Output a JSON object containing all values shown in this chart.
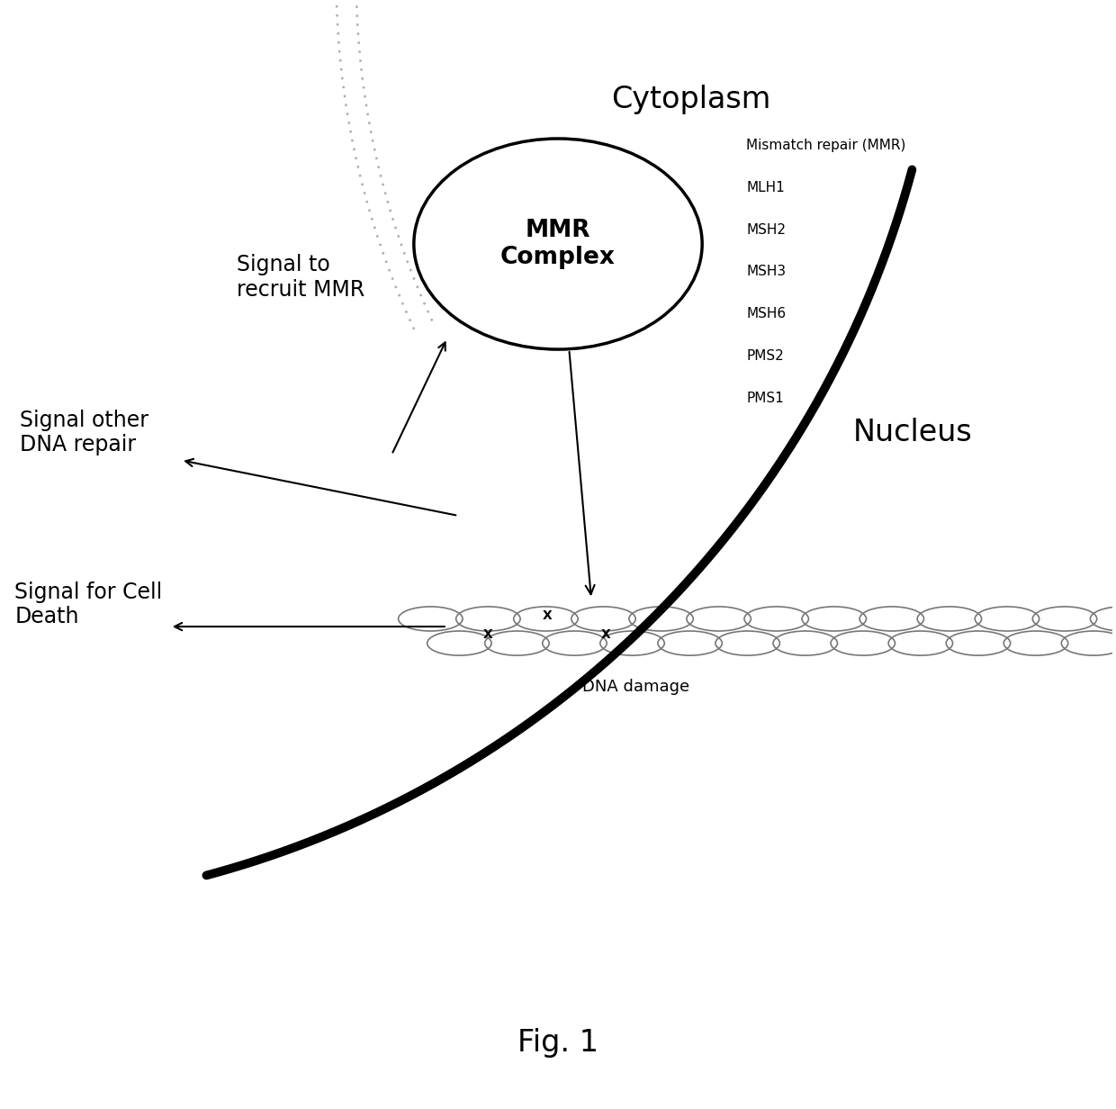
{
  "title": "Fig. 1",
  "cytoplasm_label": "Cytoplasm",
  "nucleus_label": "Nucleus",
  "mmr_complex_label": "MMR\nComplex",
  "mmr_list_header": "Mismatch repair (MMR)",
  "mmr_list": [
    "MLH1",
    "MSH2",
    "MSH3",
    "MSH6",
    "PMS2",
    "PMS1"
  ],
  "signal_mmr": "Signal to\nrecruit MMR",
  "signal_dna": "Signal other\nDNA repair",
  "signal_cell": "Signal for Cell\nDeath",
  "dna_damage_label": "DNA damage",
  "background_color": "#ffffff",
  "text_color": "#000000",
  "cell_arc_color": "#000000",
  "nucleus_arc_color": "#999999",
  "mmr_ellipse_color": "#000000",
  "figsize": [
    12.4,
    12.32
  ],
  "dpi": 100
}
